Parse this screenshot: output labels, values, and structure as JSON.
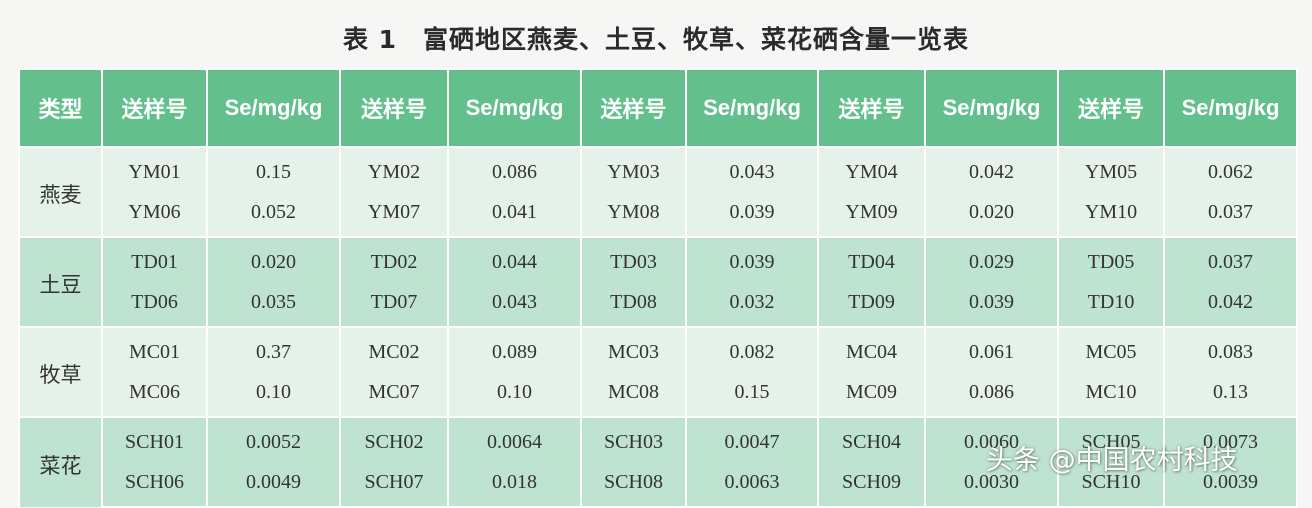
{
  "title": "表 1　富硒地区燕麦、土豆、牧草、菜花硒含量一览表",
  "headers": [
    "类型",
    "送样号",
    "Se/mg/kg",
    "送样号",
    "Se/mg/kg",
    "送样号",
    "Se/mg/kg",
    "送样号",
    "Se/mg/kg",
    "送样号",
    "Se/mg/kg"
  ],
  "groups": [
    {
      "type": "燕麦",
      "rows": [
        [
          "YM01",
          "0.15",
          "YM02",
          "0.086",
          "YM03",
          "0.043",
          "YM04",
          "0.042",
          "YM05",
          "0.062"
        ],
        [
          "YM06",
          "0.052",
          "YM07",
          "0.041",
          "YM08",
          "0.039",
          "YM09",
          "0.020",
          "YM10",
          "0.037"
        ]
      ]
    },
    {
      "type": "土豆",
      "rows": [
        [
          "TD01",
          "0.020",
          "TD02",
          "0.044",
          "TD03",
          "0.039",
          "TD04",
          "0.029",
          "TD05",
          "0.037"
        ],
        [
          "TD06",
          "0.035",
          "TD07",
          "0.043",
          "TD08",
          "0.032",
          "TD09",
          "0.039",
          "TD10",
          "0.042"
        ]
      ]
    },
    {
      "type": "牧草",
      "rows": [
        [
          "MC01",
          "0.37",
          "MC02",
          "0.089",
          "MC03",
          "0.082",
          "MC04",
          "0.061",
          "MC05",
          "0.083"
        ],
        [
          "MC06",
          "0.10",
          "MC07",
          "0.10",
          "MC08",
          "0.15",
          "MC09",
          "0.086",
          "MC10",
          "0.13"
        ]
      ]
    },
    {
      "type": "菜花",
      "rows": [
        [
          "SCH01",
          "0.0052",
          "SCH02",
          "0.0064",
          "SCH03",
          "0.0047",
          "SCH04",
          "0.0060",
          "SCH05",
          "0.0073"
        ],
        [
          "SCH06",
          "0.0049",
          "SCH07",
          "0.018",
          "SCH08",
          "0.0063",
          "SCH09",
          "0.0030",
          "SCH10",
          "0.0039"
        ]
      ]
    }
  ],
  "watermark": "头条 @中国农村科技",
  "colors": {
    "header": "#63c08d",
    "band_light": "#e4f2ea",
    "band_dark": "#bfe3d1"
  }
}
